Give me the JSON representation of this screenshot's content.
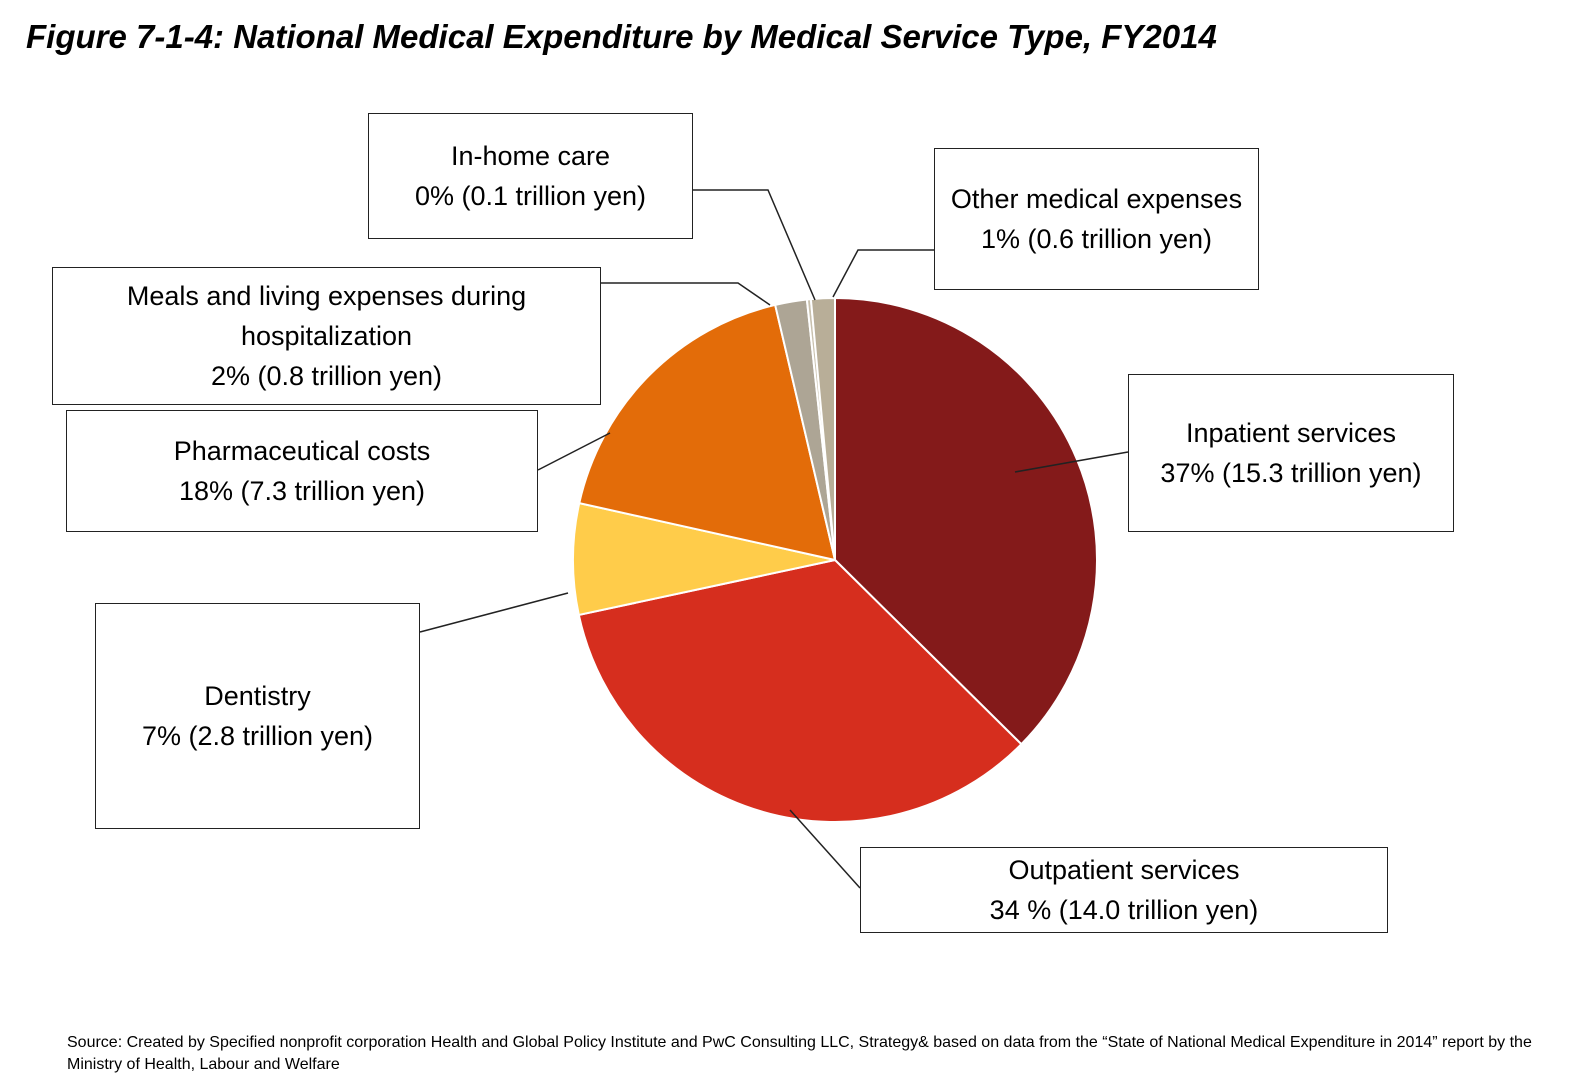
{
  "chart_data": {
    "type": "pie",
    "title": "Figure 7-1-4: National Medical Expenditure by Medical Service Type, FY2014",
    "categories": [
      "Inpatient services",
      "Outpatient services",
      "Dentistry",
      "Pharmaceutical costs",
      "Meals and living expenses during hospitalization",
      "In-home care",
      "Other medical expenses"
    ],
    "values": [
      15.3,
      14.0,
      2.8,
      7.3,
      0.8,
      0.1,
      0.6
    ],
    "value_labels": [
      "37% (15.3 trillion yen)",
      "34 % (14.0 trillion yen)",
      "7% (2.8 trillion yen)",
      "18% (7.3 trillion yen)",
      "2% (0.8 trillion yen)",
      "0% (0.1 trillion yen)",
      "1% (0.6 trillion yen)"
    ],
    "colors": [
      "#841A1A",
      "#D62E1E",
      "#FFCC4A",
      "#E36C09",
      "#ADA595",
      "#C9C1AE",
      "#B8AE98"
    ],
    "source": "Source: Created by Specified nonprofit corporation Health and Global Policy Institute and PwC Consulting LLC, Strategy& based on data from the “State of National Medical Expenditure in 2014”  report by the Ministry of Health, Labour and Welfare"
  }
}
